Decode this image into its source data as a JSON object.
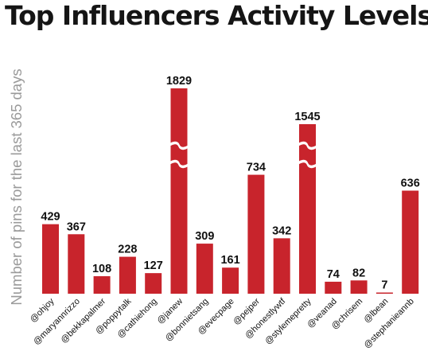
{
  "chart_data": {
    "type": "bar",
    "title": "Top Influencers Activity Levels",
    "xlabel": "",
    "ylabel": "Number of pins for the last 365 days",
    "categories": [
      "@ohjoy",
      "@maryannrizzo",
      "@bekkapalmer",
      "@poppytalk",
      "@cathiehong",
      "@janew",
      "@bonnietsang",
      "@evecpage",
      "@pejper",
      "@honestlywtf",
      "@stylemepretty",
      "@veanad",
      "@chrisem",
      "@lbean",
      "@stephanieannb"
    ],
    "values": [
      429,
      367,
      108,
      228,
      127,
      1829,
      309,
      161,
      734,
      342,
      1545,
      74,
      82,
      7,
      636
    ],
    "broken_axis": true,
    "broken_bars": [
      "@janew",
      "@stylemepretty"
    ],
    "bar_color": "#c8242c",
    "grid": false,
    "legend": "none"
  }
}
